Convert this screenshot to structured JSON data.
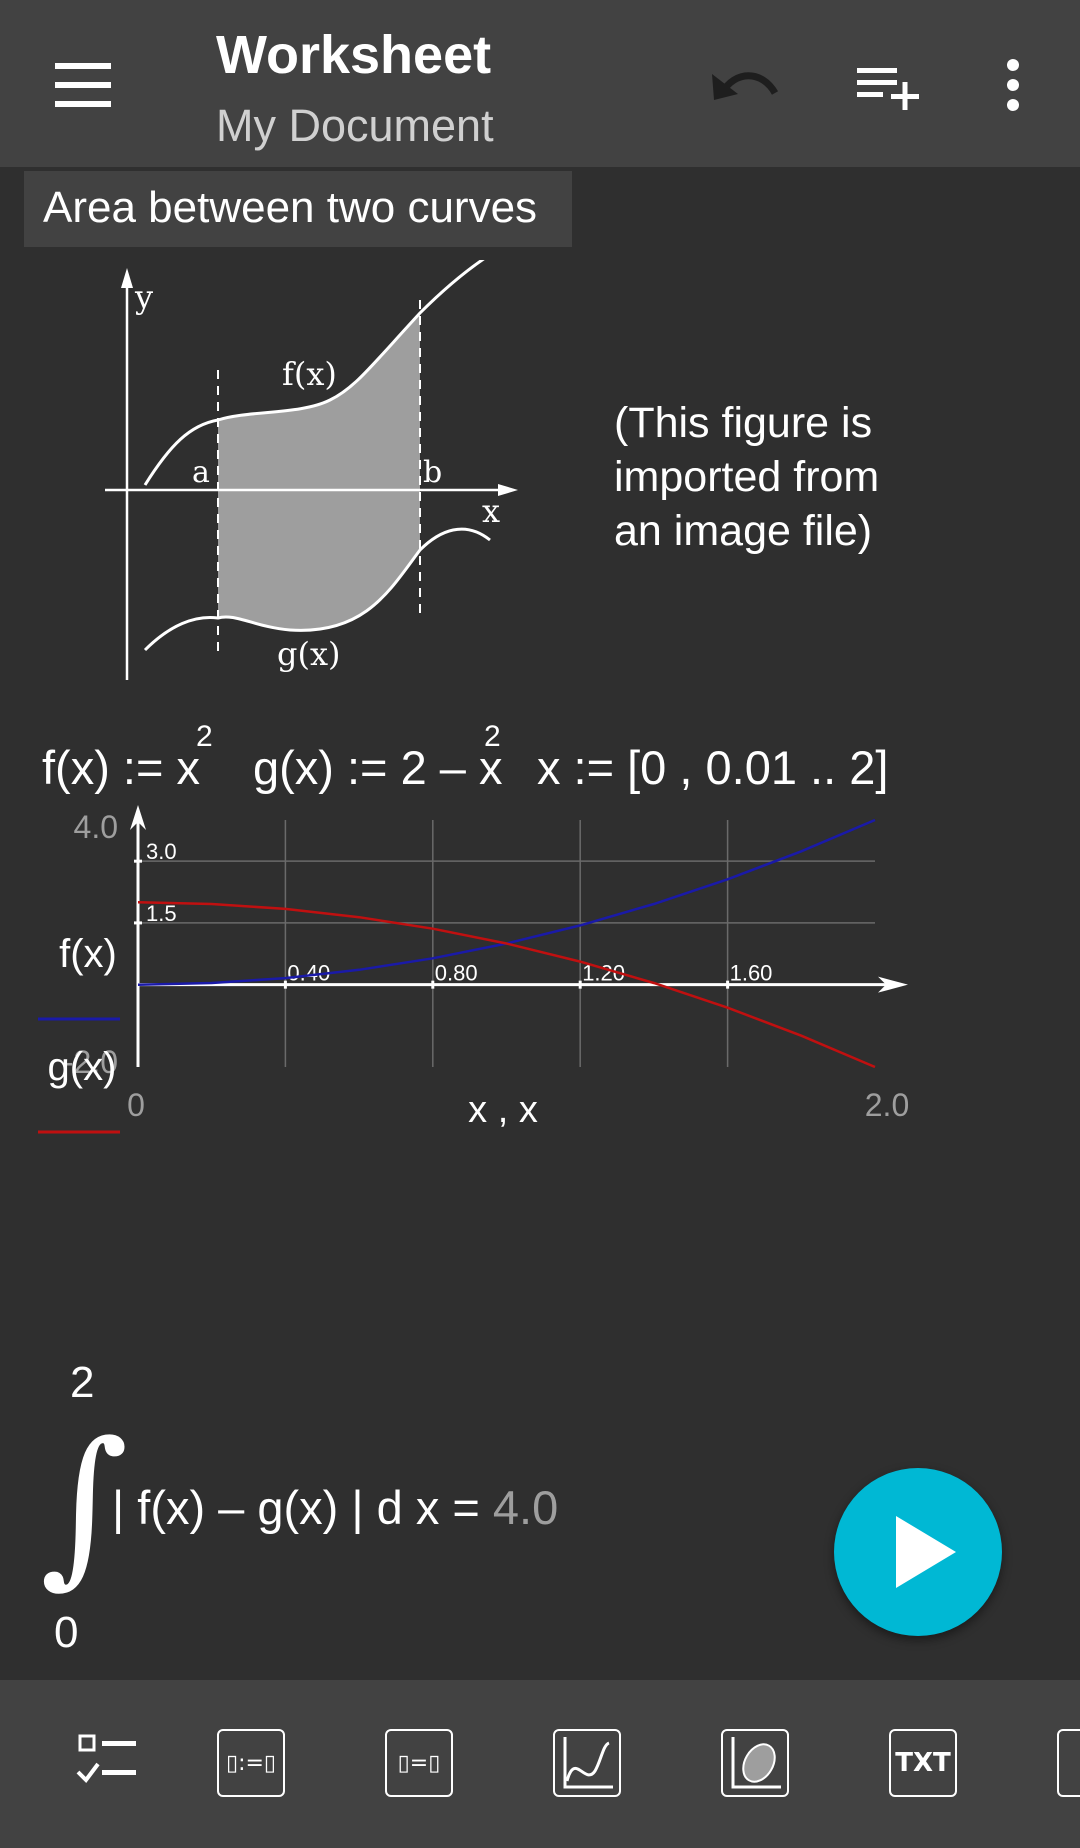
{
  "appbar": {
    "title": "Worksheet",
    "subtitle": "My Document",
    "icons": [
      "menu-icon",
      "undo-icon",
      "add-list-icon",
      "more-vert-icon"
    ]
  },
  "section": {
    "header": "Area between two curves",
    "figure": {
      "y_label": "y",
      "x_label": "x",
      "f_label": "f(x)",
      "g_label": "g(x)",
      "a_label": "a",
      "b_label": "b"
    },
    "figure_note_lines": [
      "(This figure is",
      "imported from",
      "an image file)"
    ]
  },
  "definitions": {
    "f_def": "f(x) := x",
    "f_exp": "2",
    "g_def": "g(x) := 2 – x",
    "g_exp": "2",
    "x_def": "x := [0 , 0.01 .. 2]"
  },
  "plot": {
    "y_top": "4.0",
    "y_bottom": "-2.0",
    "x_left": "0",
    "x_right": "2.0",
    "x_label": "x , x",
    "legend": [
      {
        "label": "f(x)",
        "color": "#1a1aa8"
      },
      {
        "label": "g(x)",
        "color": "#c01010"
      }
    ],
    "y_ticks": [
      "3.0",
      "1.5"
    ],
    "x_ticks": [
      "0.40",
      "0.80",
      "1.20",
      "1.60"
    ]
  },
  "chart_data": {
    "type": "line",
    "xlim": [
      0,
      2
    ],
    "ylim": [
      -2,
      4
    ],
    "grid": true,
    "x_ticks": [
      0.4,
      0.8,
      1.2,
      1.6
    ],
    "y_ticks": [
      1.5,
      3.0
    ],
    "xlabel": "x , x",
    "series": [
      {
        "name": "f(x)",
        "color": "#1a1aa8",
        "x": [
          0,
          0.2,
          0.4,
          0.6,
          0.8,
          1.0,
          1.2,
          1.4,
          1.6,
          1.8,
          2.0
        ],
        "y": [
          0,
          0.04,
          0.16,
          0.36,
          0.64,
          1.0,
          1.44,
          1.96,
          2.56,
          3.24,
          4.0
        ]
      },
      {
        "name": "g(x)",
        "color": "#c01010",
        "x": [
          0,
          0.2,
          0.4,
          0.6,
          0.8,
          1.0,
          1.2,
          1.4,
          1.6,
          1.8,
          2.0
        ],
        "y": [
          2,
          1.96,
          1.84,
          1.64,
          1.36,
          1.0,
          0.56,
          0.04,
          -0.56,
          -1.24,
          -2.0
        ]
      }
    ]
  },
  "integral": {
    "upper": "2",
    "lower": "0",
    "expression": "| f(x) – g(x) | d x =",
    "result": "4.0"
  },
  "fab": {
    "icon": "play-icon"
  },
  "toolbar": {
    "tools": [
      {
        "name": "checklist-tool",
        "label": ""
      },
      {
        "name": "define-tool",
        "label": "▯:=▯"
      },
      {
        "name": "evaluate-tool",
        "label": "▯=▯"
      },
      {
        "name": "plot-tool",
        "label": ""
      },
      {
        "name": "image-tool",
        "label": ""
      },
      {
        "name": "text-tool",
        "label": "TXT"
      }
    ]
  }
}
